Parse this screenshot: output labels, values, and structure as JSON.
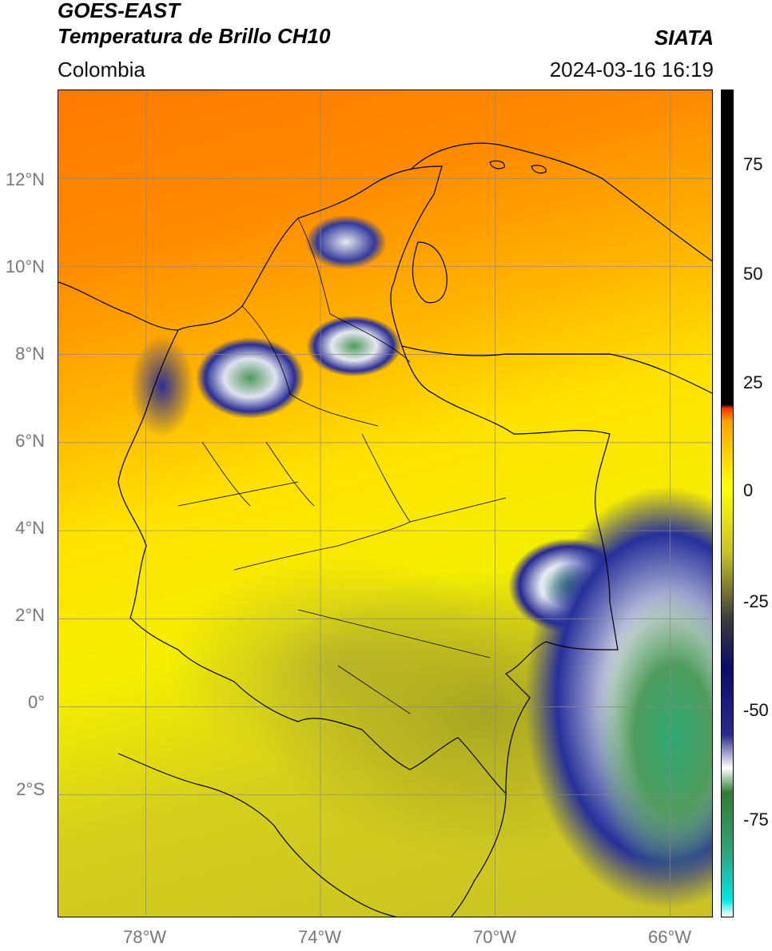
{
  "header": {
    "satellite": "GOES-EAST",
    "product": "Temperatura de Brillo CH10",
    "region": "Colombia",
    "brand": "SIATA",
    "timestamp": "2024-03-16 16:19"
  },
  "map": {
    "lat_labels": [
      "12°N",
      "10°N",
      "8°N",
      "6°N",
      "4°N",
      "2°N",
      "0°",
      "2°S"
    ],
    "lon_labels": [
      "78°W",
      "74°W",
      "70°W",
      "66°W"
    ],
    "lat_range": [
      -4.8,
      14.0
    ],
    "lon_range": [
      -80.0,
      -65.0
    ],
    "lat_ticks": [
      12,
      10,
      8,
      6,
      4,
      2,
      0,
      -2
    ],
    "lon_ticks": [
      -78,
      -74,
      -70,
      -66
    ]
  },
  "colorbar": {
    "labels": [
      "75",
      "50",
      "25",
      "0",
      "-25",
      "-50",
      "-75"
    ],
    "values": [
      75,
      50,
      25,
      0,
      -25,
      -50,
      -75
    ],
    "range": [
      -94,
      90
    ],
    "colors": [
      "#ffffff",
      "#00e6e6",
      "#2fa37a",
      "#2e7d32",
      "#ffffff",
      "#2a2a8f",
      "#0b0b6b",
      "#3b3b3b",
      "#c9c225",
      "#ffff00",
      "#ffa000",
      "#ff3000",
      "#000000"
    ]
  }
}
